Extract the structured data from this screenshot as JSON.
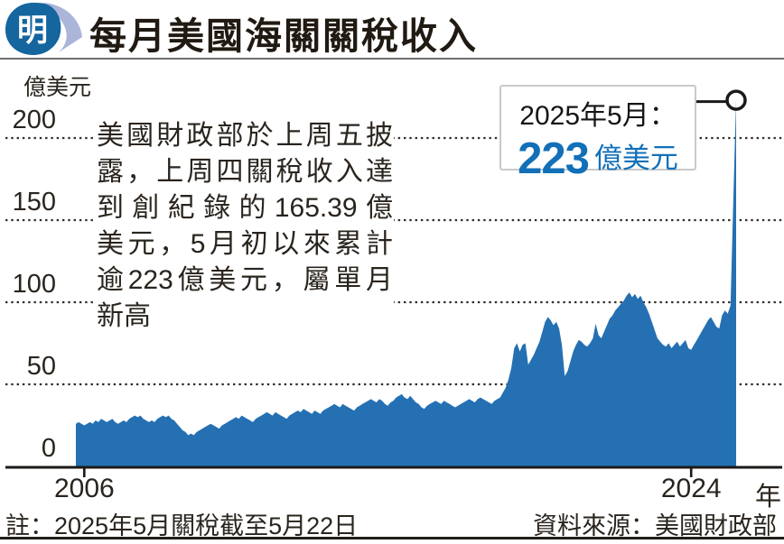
{
  "header": {
    "logo_char": "明",
    "title": "每月美國海關關稅收入"
  },
  "chart_data": {
    "type": "area",
    "title": "每月美國海關關稅收入",
    "unit_label": "億美元",
    "x_axis_suffix": "年",
    "grid": "dotted-horizontal",
    "ylim": [
      0,
      230
    ],
    "y_ticks": [
      200,
      150,
      100,
      50,
      0
    ],
    "x_ticks": [
      {
        "label": "2006",
        "month_index": 3
      },
      {
        "label": "2024",
        "month_index": 219
      }
    ],
    "series_start": "2005-10",
    "series_frequency": "monthly",
    "values": [
      26,
      27,
      26,
      25,
      26,
      27,
      26,
      28,
      27,
      29,
      28,
      27,
      28,
      29,
      27,
      26,
      27,
      28,
      27,
      29,
      30,
      31,
      30,
      31,
      29,
      28,
      27,
      28,
      27,
      29,
      30,
      31,
      30,
      31,
      29,
      28,
      26,
      24,
      22,
      21,
      19,
      20,
      19,
      21,
      22,
      23,
      24,
      25,
      26,
      25,
      24,
      23,
      25,
      26,
      27,
      28,
      29,
      30,
      29,
      31,
      30,
      29,
      28,
      27,
      29,
      30,
      31,
      32,
      33,
      32,
      31,
      33,
      32,
      31,
      30,
      29,
      31,
      32,
      33,
      34,
      33,
      35,
      34,
      33,
      32,
      34,
      33,
      32,
      34,
      35,
      36,
      37,
      38,
      37,
      36,
      38,
      37,
      36,
      35,
      34,
      36,
      37,
      38,
      39,
      40,
      41,
      40,
      39,
      41,
      40,
      38,
      37,
      39,
      40,
      42,
      43,
      44,
      42,
      41,
      43,
      41,
      39,
      38,
      36,
      35,
      37,
      38,
      39,
      40,
      39,
      38,
      40,
      39,
      38,
      37,
      36,
      37,
      38,
      39,
      40,
      41,
      40,
      39,
      41,
      42,
      41,
      40,
      39,
      38,
      40,
      41,
      42,
      45,
      48,
      53,
      60,
      72,
      75,
      70,
      74,
      75,
      62,
      65,
      68,
      72,
      76,
      82,
      88,
      91,
      89,
      86,
      88,
      84,
      74,
      55,
      58,
      64,
      70,
      74,
      77,
      76,
      74,
      73,
      75,
      78,
      87,
      80,
      78,
      82,
      86,
      90,
      92,
      95,
      97,
      99,
      101,
      104,
      106,
      103,
      105,
      102,
      104,
      100,
      97,
      93,
      88,
      83,
      78,
      76,
      74,
      73,
      75,
      72,
      74,
      76,
      73,
      75,
      77,
      72,
      71,
      74,
      77,
      80,
      83,
      86,
      89,
      91,
      88,
      85,
      84,
      92,
      95,
      93,
      98,
      163,
      223
    ],
    "colors": {
      "area": "#2470b3",
      "accent_text": "#1270b8",
      "grid": "#332c26"
    },
    "annotation": {
      "line1": "2025年5月：",
      "value": "223",
      "suffix": "億美元"
    }
  },
  "commentary": {
    "lines": [
      "美國財政部於上周五披",
      "露，上周四關稅收入達",
      "到創紀錄的165.39億",
      "美元，5月初以來累計",
      "逾223億美元，屬單月",
      "新高"
    ]
  },
  "footer": {
    "note": "註：2025年5月關稅截至5月22日",
    "source": "資料來源：美國財政部"
  }
}
